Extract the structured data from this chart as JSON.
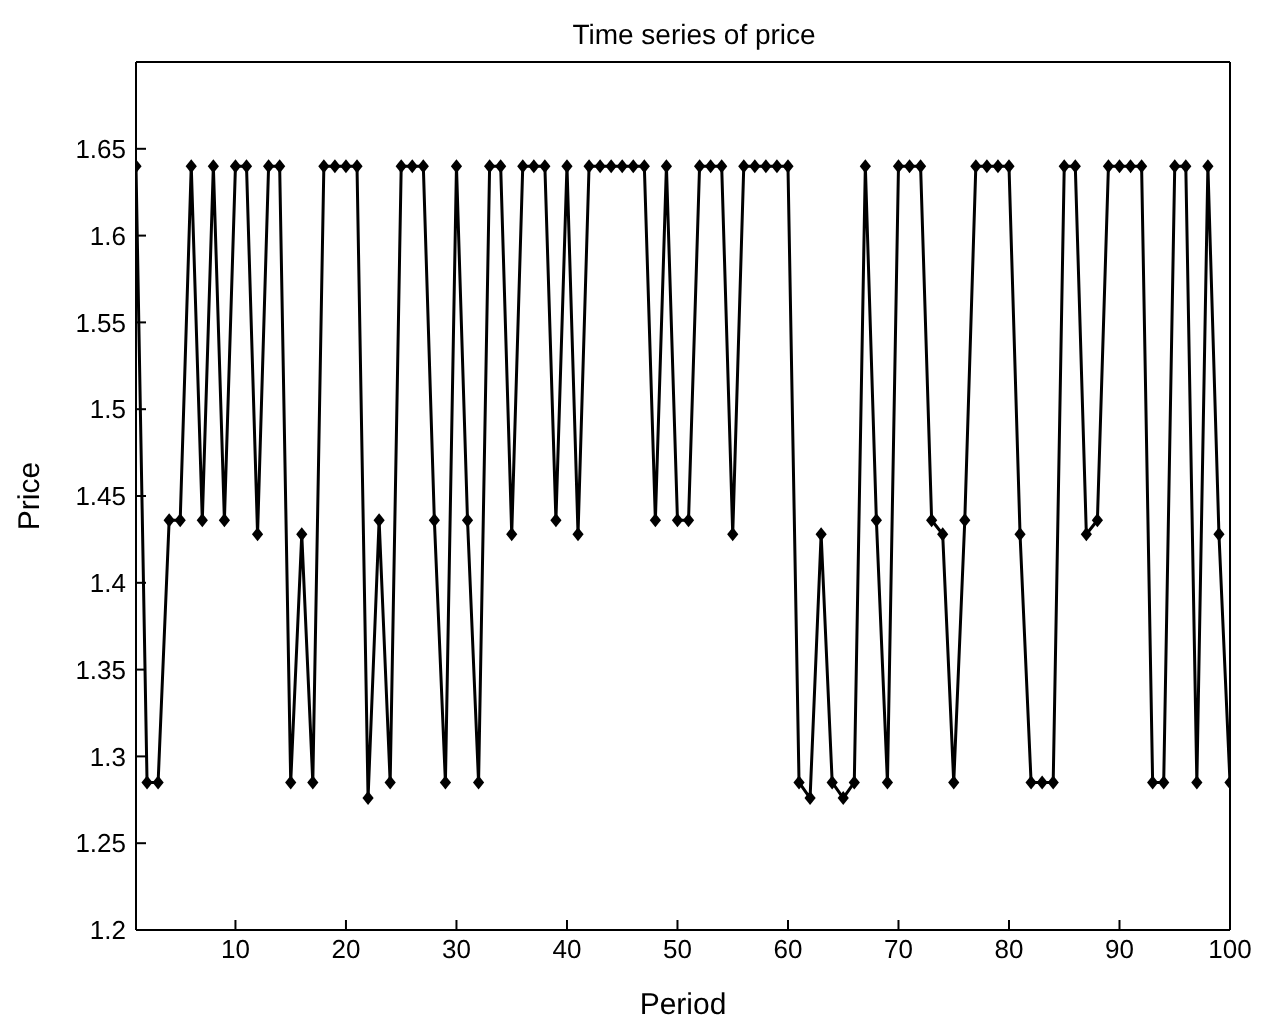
{
  "chart_data": {
    "type": "line",
    "title": "Time series of price",
    "xlabel": "Period",
    "ylabel": "Price",
    "x": [
      1,
      2,
      3,
      4,
      5,
      6,
      7,
      8,
      9,
      10,
      11,
      12,
      13,
      14,
      15,
      16,
      17,
      18,
      19,
      20,
      21,
      22,
      23,
      24,
      25,
      26,
      27,
      28,
      29,
      30,
      31,
      32,
      33,
      34,
      35,
      36,
      37,
      38,
      39,
      40,
      41,
      42,
      43,
      44,
      45,
      46,
      47,
      48,
      49,
      50,
      51,
      52,
      53,
      54,
      55,
      56,
      57,
      58,
      59,
      60,
      61,
      62,
      63,
      64,
      65,
      66,
      67,
      68,
      69,
      70,
      71,
      72,
      73,
      74,
      75,
      76,
      77,
      78,
      79,
      80,
      81,
      82,
      83,
      84,
      85,
      86,
      87,
      88,
      89,
      90,
      91,
      92,
      93,
      94,
      95,
      96,
      97,
      98,
      99,
      100
    ],
    "series": [
      {
        "color": "#000000",
        "values": [
          1.64,
          1.285,
          1.285,
          1.436,
          1.436,
          1.64,
          1.436,
          1.64,
          1.436,
          1.64,
          1.64,
          1.428,
          1.64,
          1.64,
          1.285,
          1.428,
          1.285,
          1.64,
          1.64,
          1.64,
          1.64,
          1.276,
          1.436,
          1.285,
          1.64,
          1.64,
          1.64,
          1.436,
          1.285,
          1.64,
          1.436,
          1.285,
          1.64,
          1.64,
          1.428,
          1.64,
          1.64,
          1.64,
          1.436,
          1.64,
          1.428,
          1.64,
          1.64,
          1.64,
          1.64,
          1.64,
          1.64,
          1.436,
          1.64,
          1.436,
          1.436,
          1.64,
          1.64,
          1.64,
          1.428,
          1.64,
          1.64,
          1.64,
          1.64,
          1.64,
          1.285,
          1.276,
          1.428,
          1.285,
          1.276,
          1.285,
          1.64,
          1.436,
          1.285,
          1.64,
          1.64,
          1.64,
          1.436,
          1.428,
          1.285,
          1.436,
          1.64,
          1.64,
          1.64,
          1.64,
          1.428,
          1.285,
          1.285,
          1.285,
          1.64,
          1.64,
          1.428,
          1.436,
          1.64,
          1.64,
          1.64,
          1.64,
          1.285,
          1.285,
          1.64,
          1.64,
          1.285,
          1.64,
          1.428,
          1.285
        ]
      }
    ],
    "xlim": [
      1,
      100
    ],
    "xticks": [
      10,
      20,
      30,
      40,
      50,
      60,
      70,
      80,
      90,
      100
    ],
    "ylim": [
      1.2,
      1.7
    ],
    "yticks": [
      1.2,
      1.25,
      1.3,
      1.35,
      1.4,
      1.45,
      1.5,
      1.55,
      1.6,
      1.65
    ],
    "grid": false,
    "legend": false,
    "marker": "diamond",
    "line_style": "solid"
  }
}
